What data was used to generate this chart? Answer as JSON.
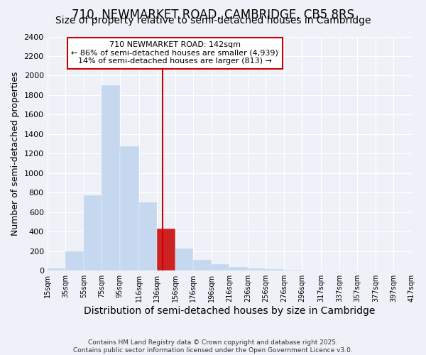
{
  "title": "710, NEWMARKET ROAD, CAMBRIDGE, CB5 8RS",
  "subtitle": "Size of property relative to semi-detached houses in Cambridge",
  "xlabel": "Distribution of semi-detached houses by size in Cambridge",
  "ylabel": "Number of semi-detached properties",
  "footer1": "Contains HM Land Registry data © Crown copyright and database right 2025.",
  "footer2": "Contains public sector information licensed under the Open Government Licence v3.0.",
  "annotation_line1": "710 NEWMARKET ROAD: 142sqm",
  "annotation_line2": "← 86% of semi-detached houses are smaller (4,939)",
  "annotation_line3": "14% of semi-detached houses are larger (813) →",
  "property_size": 142,
  "bar_edges": [
    15,
    35,
    55,
    75,
    95,
    116,
    136,
    156,
    176,
    196,
    216,
    236,
    256,
    276,
    296,
    317,
    337,
    357,
    377,
    397,
    417
  ],
  "bar_heights": [
    25,
    200,
    775,
    1900,
    1275,
    700,
    430,
    230,
    110,
    65,
    40,
    20,
    15,
    10,
    5,
    3,
    2,
    2,
    1,
    1
  ],
  "highlight_bar_index": 6,
  "bar_color": "#c5d8f0",
  "highlight_bar_color": "#cc2222",
  "vline_color": "#cc0000",
  "vline_x": 142,
  "ylim": [
    0,
    2400
  ],
  "yticks": [
    0,
    200,
    400,
    600,
    800,
    1000,
    1200,
    1400,
    1600,
    1800,
    2000,
    2200,
    2400
  ],
  "background_color": "#eef2f8",
  "grid_color": "#ffffff",
  "annotation_box_color": "#ffffff",
  "annotation_box_edge": "#cc0000",
  "title_fontsize": 12,
  "subtitle_fontsize": 10,
  "xlabel_fontsize": 10,
  "ylabel_fontsize": 9,
  "annotation_fontsize": 8
}
